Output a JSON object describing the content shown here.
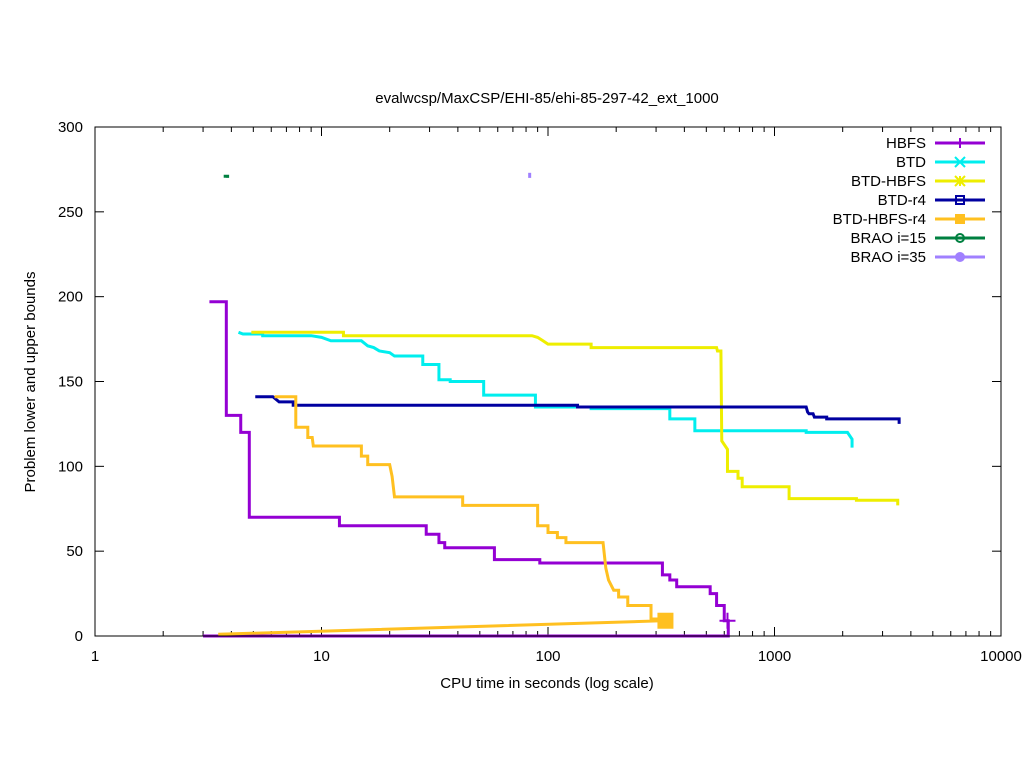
{
  "chart_data": {
    "type": "line",
    "title": "evalwcsp/MaxCSP/EHI-85/ehi-85-297-42_ext_1000",
    "xlabel": "CPU time in seconds (log scale)",
    "ylabel": "Problem lower and upper bounds",
    "xscale": "log",
    "xlim": [
      1,
      10000
    ],
    "ylim": [
      0,
      300
    ],
    "xticks": [
      1,
      10,
      100,
      1000,
      10000
    ],
    "xtick_labels": [
      "1",
      "10",
      "100",
      "1000",
      "10000"
    ],
    "yticks": [
      0,
      50,
      100,
      150,
      200,
      250,
      300
    ],
    "ytick_labels": [
      "0",
      "50",
      "100",
      "150",
      "200",
      "250",
      "300"
    ],
    "grid": false,
    "legend_position": "top-right",
    "series": [
      {
        "name": "HBFS",
        "color": "#9400d3",
        "marker": "plus",
        "points": [
          [
            3.2,
            197
          ],
          [
            3.8,
            197
          ],
          [
            3.8,
            130
          ],
          [
            4.4,
            130
          ],
          [
            4.4,
            120
          ],
          [
            4.8,
            120
          ],
          [
            4.8,
            70
          ],
          [
            12,
            70
          ],
          [
            12,
            65
          ],
          [
            29,
            65
          ],
          [
            29,
            60
          ],
          [
            33,
            60
          ],
          [
            33,
            55
          ],
          [
            35,
            55
          ],
          [
            35,
            52
          ],
          [
            58,
            52
          ],
          [
            58,
            45
          ],
          [
            92,
            45
          ],
          [
            92,
            43
          ],
          [
            320,
            43
          ],
          [
            320,
            36
          ],
          [
            345,
            36
          ],
          [
            345,
            33
          ],
          [
            370,
            33
          ],
          [
            370,
            29
          ],
          [
            520,
            29
          ],
          [
            520,
            25
          ],
          [
            555,
            25
          ],
          [
            555,
            18
          ],
          [
            600,
            18
          ],
          [
            600,
            9
          ],
          [
            625,
            9
          ],
          [
            625,
            0
          ],
          [
            610,
            0
          ],
          [
            600,
            0
          ],
          [
            3.0,
            0
          ]
        ],
        "final_marker": [
          620,
          9
        ]
      },
      {
        "name": "BTD",
        "color": "#00eeee",
        "marker": "x",
        "points": [
          [
            4.3,
            179
          ],
          [
            4.5,
            178
          ],
          [
            5.5,
            178
          ],
          [
            5.5,
            177
          ],
          [
            9,
            177
          ],
          [
            10,
            176
          ],
          [
            11,
            174
          ],
          [
            15,
            174
          ],
          [
            16,
            171
          ],
          [
            17,
            170
          ],
          [
            18,
            168
          ],
          [
            20,
            167
          ],
          [
            21,
            165
          ],
          [
            28,
            165
          ],
          [
            28,
            160
          ],
          [
            33,
            160
          ],
          [
            33,
            151
          ],
          [
            37,
            151
          ],
          [
            37,
            150
          ],
          [
            52,
            150
          ],
          [
            52,
            142
          ],
          [
            88,
            142
          ],
          [
            88,
            135
          ],
          [
            155,
            135
          ],
          [
            155,
            134
          ],
          [
            345,
            134
          ],
          [
            345,
            128
          ],
          [
            445,
            128
          ],
          [
            445,
            121
          ],
          [
            1380,
            121
          ],
          [
            1380,
            120
          ],
          [
            2100,
            120
          ],
          [
            2200,
            116
          ],
          [
            2200,
            111
          ]
        ]
      },
      {
        "name": "BTD-HBFS",
        "color": "#eeee00",
        "marker": "star",
        "points": [
          [
            4.9,
            179
          ],
          [
            12.5,
            179
          ],
          [
            12.5,
            177
          ],
          [
            85,
            177
          ],
          [
            90,
            176
          ],
          [
            95,
            174
          ],
          [
            100,
            172
          ],
          [
            155,
            172
          ],
          [
            155,
            170
          ],
          [
            555,
            170
          ],
          [
            560,
            168
          ],
          [
            580,
            168
          ],
          [
            585,
            115
          ],
          [
            620,
            110
          ],
          [
            620,
            97
          ],
          [
            690,
            97
          ],
          [
            690,
            93
          ],
          [
            720,
            93
          ],
          [
            720,
            88
          ],
          [
            1160,
            88
          ],
          [
            1160,
            81
          ],
          [
            2300,
            81
          ],
          [
            2300,
            80
          ],
          [
            3500,
            80
          ],
          [
            3500,
            77
          ]
        ]
      },
      {
        "name": "BTD-r4",
        "color": "#0000a0",
        "marker": "square",
        "points": [
          [
            5.1,
            141
          ],
          [
            6.1,
            141
          ],
          [
            6.5,
            138
          ],
          [
            7.5,
            138
          ],
          [
            7.5,
            136
          ],
          [
            135,
            136
          ],
          [
            135,
            135
          ],
          [
            1380,
            135
          ],
          [
            1400,
            132
          ],
          [
            1420,
            131
          ],
          [
            1480,
            131
          ],
          [
            1500,
            129
          ],
          [
            1700,
            129
          ],
          [
            1700,
            128
          ],
          [
            3550,
            128
          ],
          [
            3550,
            125
          ]
        ]
      },
      {
        "name": "BTD-HBFS-r4",
        "color": "#ffc020",
        "marker": "filled-square",
        "points": [
          [
            6.2,
            141
          ],
          [
            7.7,
            141
          ],
          [
            7.7,
            123
          ],
          [
            8.7,
            123
          ],
          [
            8.7,
            117
          ],
          [
            9.1,
            117
          ],
          [
            9.2,
            112
          ],
          [
            15,
            112
          ],
          [
            15,
            106
          ],
          [
            16,
            106
          ],
          [
            16,
            101
          ],
          [
            20,
            101
          ],
          [
            20.5,
            94
          ],
          [
            21,
            82
          ],
          [
            42,
            82
          ],
          [
            42,
            77
          ],
          [
            90,
            77
          ],
          [
            90,
            65
          ],
          [
            100,
            65
          ],
          [
            100,
            61
          ],
          [
            110,
            61
          ],
          [
            110,
            58
          ],
          [
            120,
            58
          ],
          [
            120,
            55
          ],
          [
            175,
            55
          ],
          [
            180,
            40
          ],
          [
            185,
            33
          ],
          [
            195,
            27
          ],
          [
            205,
            27
          ],
          [
            205,
            23
          ],
          [
            225,
            23
          ],
          [
            225,
            18
          ],
          [
            285,
            18
          ],
          [
            285,
            10
          ],
          [
            325,
            10
          ],
          [
            325,
            9
          ],
          [
            3.5,
            1
          ]
        ],
        "final_marker": [
          330,
          9
        ]
      },
      {
        "name": "BRAO i=15",
        "color": "#008040",
        "marker": "circle",
        "points": [
          [
            3.7,
            271
          ],
          [
            3.85,
            271
          ],
          [
            3.85,
            270
          ]
        ]
      },
      {
        "name": "BRAO i=35",
        "color": "#a080ff",
        "marker": "filled-circle",
        "points": [
          [
            83,
            273
          ],
          [
            83,
            270
          ]
        ]
      }
    ]
  }
}
